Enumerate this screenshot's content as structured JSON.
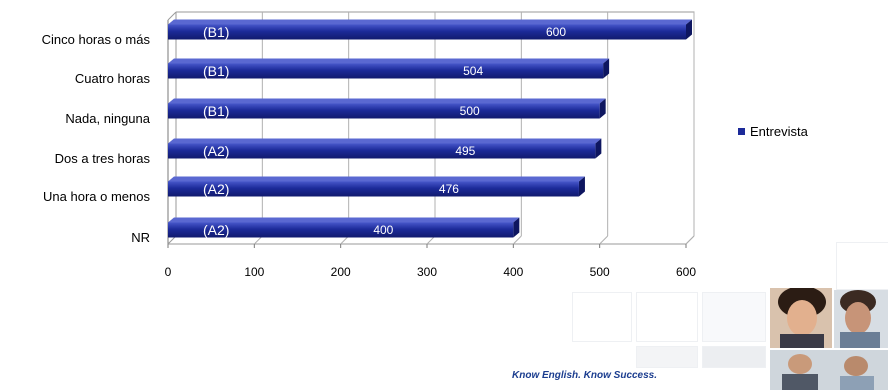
{
  "chart_data": {
    "type": "bar",
    "orientation": "horizontal",
    "categories": [
      "Cinco horas o más",
      "Cuatro horas",
      "Nada, ninguna",
      "Dos a tres horas",
      "Una hora o menos",
      "NR"
    ],
    "levels": [
      "(B1)",
      "(B1)",
      "(B1)",
      "(A2)",
      "(A2)",
      "(A2)"
    ],
    "series": [
      {
        "name": "Entrevista",
        "values": [
          600,
          504,
          500,
          495,
          476,
          400
        ],
        "color": "#1c2a99"
      }
    ],
    "xlim": [
      0,
      600
    ],
    "xticks": [
      "0",
      "100",
      "200",
      "300",
      "400",
      "500",
      "600"
    ],
    "grid": true,
    "legend": "right",
    "style": "3d"
  },
  "footer": {
    "tagline": "Know English. Know Success."
  }
}
